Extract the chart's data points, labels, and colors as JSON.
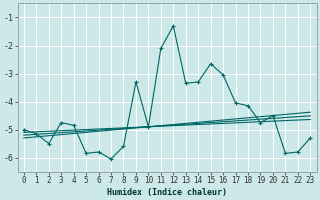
{
  "xlabel": "Humidex (Indice chaleur)",
  "bg_color": "#cce8e8",
  "grid_color": "#ffffff",
  "line_color": "#006666",
  "x_values": [
    0,
    1,
    2,
    3,
    4,
    5,
    6,
    7,
    8,
    9,
    10,
    11,
    12,
    13,
    14,
    15,
    16,
    17,
    18,
    19,
    20,
    21,
    22,
    23
  ],
  "series1": [
    -5.0,
    -5.15,
    -5.5,
    -4.75,
    -4.85,
    -5.85,
    -5.8,
    -6.05,
    -5.6,
    -3.3,
    -4.9,
    -2.1,
    -1.3,
    -3.35,
    -3.3,
    -2.65,
    -3.05,
    -4.05,
    -4.15,
    -4.75,
    -4.5,
    -5.85,
    -5.8,
    -5.3
  ],
  "series_lin1": [
    -5.1,
    -5.08,
    -5.06,
    -5.04,
    -5.02,
    -5.0,
    -4.98,
    -4.96,
    -4.94,
    -4.92,
    -4.9,
    -4.88,
    -4.86,
    -4.84,
    -4.82,
    -4.8,
    -4.78,
    -4.76,
    -4.74,
    -4.72,
    -4.7,
    -4.68,
    -4.66,
    -4.64
  ],
  "series_lin2": [
    -5.2,
    -5.17,
    -5.14,
    -5.11,
    -5.08,
    -5.05,
    -5.02,
    -4.99,
    -4.96,
    -4.93,
    -4.9,
    -4.87,
    -4.84,
    -4.81,
    -4.78,
    -4.75,
    -4.72,
    -4.69,
    -4.66,
    -4.63,
    -4.6,
    -4.57,
    -4.54,
    -4.51
  ],
  "series_lin3": [
    -5.3,
    -5.26,
    -5.22,
    -5.18,
    -5.14,
    -5.1,
    -5.06,
    -5.02,
    -4.98,
    -4.94,
    -4.9,
    -4.86,
    -4.82,
    -4.78,
    -4.74,
    -4.7,
    -4.66,
    -4.62,
    -4.58,
    -4.54,
    -4.5,
    -4.46,
    -4.42,
    -4.38
  ],
  "ylim": [
    -6.5,
    -0.5
  ],
  "xlim": [
    -0.5,
    23.5
  ],
  "yticks": [
    -1,
    -2,
    -3,
    -4,
    -5,
    -6
  ],
  "xticks": [
    0,
    1,
    2,
    3,
    4,
    5,
    6,
    7,
    8,
    9,
    10,
    11,
    12,
    13,
    14,
    15,
    16,
    17,
    18,
    19,
    20,
    21,
    22,
    23
  ]
}
